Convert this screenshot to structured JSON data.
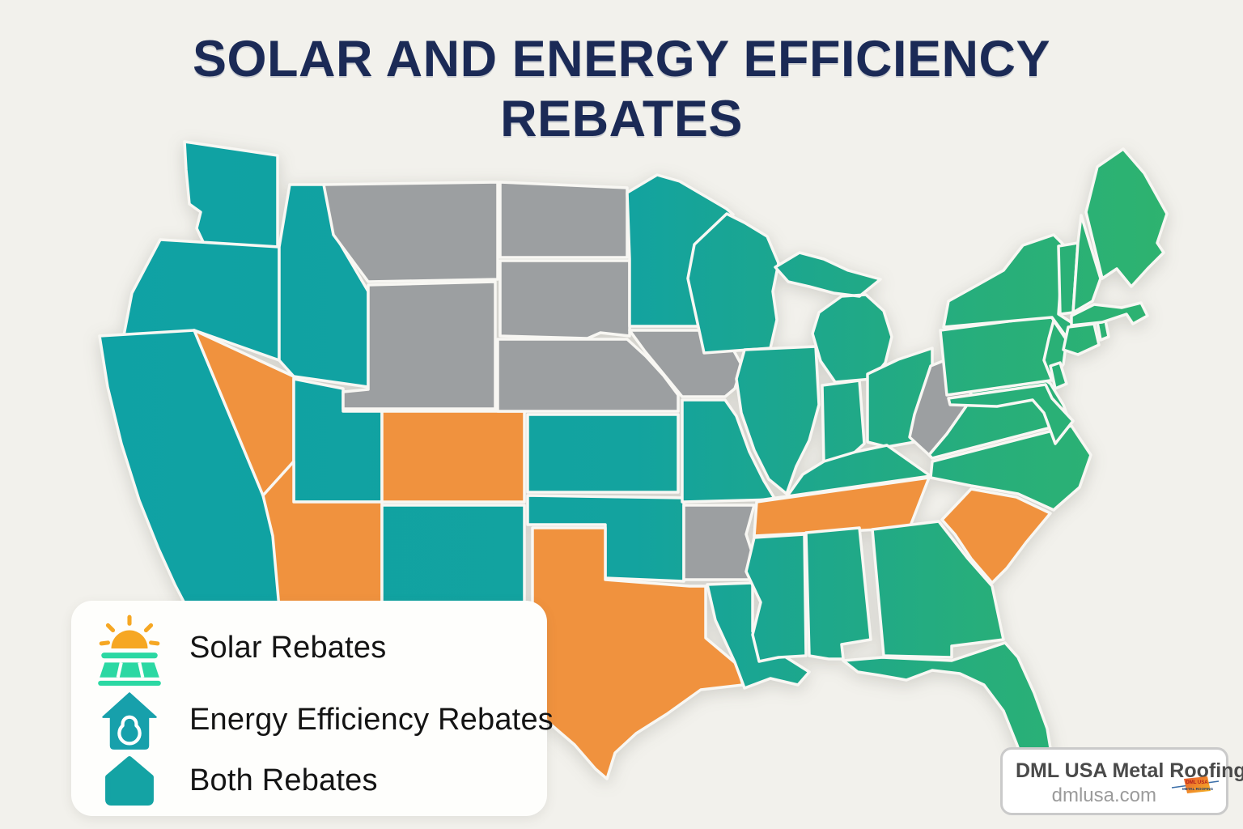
{
  "title": {
    "line1": "SOLAR AND ENERGY EFFICIENCY",
    "line2": "REBATES"
  },
  "legend": {
    "items": [
      {
        "id": "solar",
        "label": "Solar Rebates",
        "icon": "solar-panel-sun-icon"
      },
      {
        "id": "efficiency",
        "label": "Energy Efficiency Rebates",
        "icon": "house-outline-icon"
      },
      {
        "id": "both",
        "label": "Both Rebates",
        "icon": "house-solid-icon"
      }
    ]
  },
  "watermark": {
    "company": "DML USA Metal Roofing",
    "website": "dmlusa.com",
    "logo_text_top": "DML USA",
    "logo_text_bottom": "METAL ROOFING"
  },
  "colors": {
    "background": "#F2F1EC",
    "title": "#1B2A56",
    "solar": "#F0923E",
    "both_west": "#0FA2A4",
    "both_mid": "#16A49A",
    "both_east": "#2EB36F",
    "no_data": "#9C9FA1",
    "state_border": "#F8F7F3",
    "legend_house_teal": "#17A0AB",
    "legend_swatch_teal": "#14A3A4",
    "panel_mint": "#2BD8A3",
    "sun_orange": "#F6A723"
  },
  "map": {
    "states": [
      {
        "id": "WA",
        "name": "Washington",
        "category": "both"
      },
      {
        "id": "OR",
        "name": "Oregon",
        "category": "both"
      },
      {
        "id": "CA",
        "name": "California",
        "category": "both"
      },
      {
        "id": "ID",
        "name": "Idaho",
        "category": "both"
      },
      {
        "id": "NV",
        "name": "Nevada",
        "category": "solar"
      },
      {
        "id": "UT",
        "name": "Utah",
        "category": "both"
      },
      {
        "id": "AZ",
        "name": "Arizona",
        "category": "solar"
      },
      {
        "id": "MT",
        "name": "Montana",
        "category": "none"
      },
      {
        "id": "WY",
        "name": "Wyoming",
        "category": "none"
      },
      {
        "id": "CO",
        "name": "Colorado",
        "category": "solar"
      },
      {
        "id": "NM",
        "name": "New Mexico",
        "category": "both"
      },
      {
        "id": "ND",
        "name": "North Dakota",
        "category": "none"
      },
      {
        "id": "SD",
        "name": "South Dakota",
        "category": "none"
      },
      {
        "id": "NE",
        "name": "Nebraska",
        "category": "none"
      },
      {
        "id": "KS",
        "name": "Kansas",
        "category": "both"
      },
      {
        "id": "OK",
        "name": "Oklahoma",
        "category": "both"
      },
      {
        "id": "TX",
        "name": "Texas",
        "category": "solar"
      },
      {
        "id": "MN",
        "name": "Minnesota",
        "category": "both"
      },
      {
        "id": "IA",
        "name": "Iowa",
        "category": "none"
      },
      {
        "id": "MO",
        "name": "Missouri",
        "category": "both"
      },
      {
        "id": "AR",
        "name": "Arkansas",
        "category": "none"
      },
      {
        "id": "LA",
        "name": "Louisiana",
        "category": "both"
      },
      {
        "id": "WI",
        "name": "Wisconsin",
        "category": "both"
      },
      {
        "id": "MI",
        "name": "Michigan",
        "category": "both"
      },
      {
        "id": "IL",
        "name": "Illinois",
        "category": "both"
      },
      {
        "id": "IN",
        "name": "Indiana",
        "category": "both"
      },
      {
        "id": "OH",
        "name": "Ohio",
        "category": "both"
      },
      {
        "id": "KY",
        "name": "Kentucky",
        "category": "both"
      },
      {
        "id": "TN",
        "name": "Tennessee",
        "category": "solar"
      },
      {
        "id": "MS",
        "name": "Mississippi",
        "category": "both"
      },
      {
        "id": "AL",
        "name": "Alabama",
        "category": "both"
      },
      {
        "id": "GA",
        "name": "Georgia",
        "category": "both"
      },
      {
        "id": "FL",
        "name": "Florida",
        "category": "both"
      },
      {
        "id": "SC",
        "name": "South Carolina",
        "category": "solar"
      },
      {
        "id": "NC",
        "name": "North Carolina",
        "category": "both"
      },
      {
        "id": "VA",
        "name": "Virginia",
        "category": "both"
      },
      {
        "id": "WV",
        "name": "West Virginia",
        "category": "none"
      },
      {
        "id": "PA",
        "name": "Pennsylvania",
        "category": "both"
      },
      {
        "id": "NY",
        "name": "New York",
        "category": "both"
      },
      {
        "id": "NJ",
        "name": "New Jersey",
        "category": "both"
      },
      {
        "id": "MD",
        "name": "Maryland",
        "category": "both"
      },
      {
        "id": "DE",
        "name": "Delaware",
        "category": "both"
      },
      {
        "id": "CT",
        "name": "Connecticut",
        "category": "both"
      },
      {
        "id": "RI",
        "name": "Rhode Island",
        "category": "both"
      },
      {
        "id": "MA",
        "name": "Massachusetts",
        "category": "both"
      },
      {
        "id": "VT",
        "name": "Vermont",
        "category": "both"
      },
      {
        "id": "NH",
        "name": "New Hampshire",
        "category": "both"
      },
      {
        "id": "ME",
        "name": "Maine",
        "category": "both"
      }
    ]
  }
}
